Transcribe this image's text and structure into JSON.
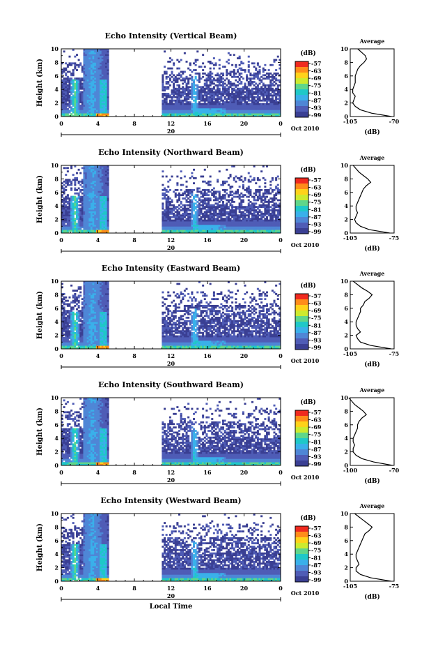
{
  "chart_data": [
    {
      "type": "heatmap",
      "title": "Echo Intensity (Vertical Beam)",
      "ylabel": "Height (km)",
      "ylim": [
        0,
        10
      ],
      "yticks": [
        "0",
        "2",
        "4",
        "6",
        "8",
        "10"
      ],
      "xlim": [
        0,
        24
      ],
      "xticks": [
        "0",
        "4",
        "8",
        "12",
        "16",
        "20",
        "0"
      ],
      "date_label": "20",
      "date_suffix": "Oct 2010",
      "data_gaps": [
        [
          5.3,
          10.8
        ]
      ],
      "colorbar": {
        "unit": "(dB)",
        "ticks": [
          "-57",
          "-63",
          "-69",
          "-75",
          "-81",
          "-87",
          "-93",
          "-99"
        ]
      },
      "profile": {
        "title": "Average",
        "xlabel": "(dB)",
        "xticks": [
          "-105",
          "-70"
        ],
        "yticks": [
          "0",
          "2",
          "4",
          "6",
          "8",
          "10"
        ],
        "height_km": [
          0,
          0.5,
          1,
          1.5,
          2,
          2.5,
          3,
          3.5,
          4,
          4.5,
          5,
          5.5,
          6,
          6.5,
          7,
          7.5,
          8,
          8.5,
          9,
          9.5,
          10
        ],
        "avg_db": [
          -72,
          -88,
          -97,
          -101,
          -103,
          -102,
          -101,
          -103,
          -103,
          -102,
          -101,
          -101,
          -101,
          -100,
          -99,
          -97,
          -94,
          -92,
          -93,
          -96,
          -99
        ]
      }
    },
    {
      "type": "heatmap",
      "title": "Echo Intensity (Northward Beam)",
      "ylabel": "Height (km)",
      "ylim": [
        0,
        10
      ],
      "yticks": [
        "0",
        "2",
        "4",
        "6",
        "8",
        "10"
      ],
      "xlim": [
        0,
        24
      ],
      "xticks": [
        "0",
        "4",
        "8",
        "12",
        "16",
        "20",
        "0"
      ],
      "date_label": "20",
      "date_suffix": "Oct 2010",
      "data_gaps": [
        [
          5.3,
          10.8
        ]
      ],
      "colorbar": {
        "unit": "(dB)",
        "ticks": [
          "-57",
          "-63",
          "-69",
          "-75",
          "-81",
          "-87",
          "-93",
          "-99"
        ]
      },
      "profile": {
        "title": "Average",
        "xlabel": "(dB)",
        "xticks": [
          "-105",
          "-75"
        ],
        "yticks": [
          "0",
          "2",
          "4",
          "6",
          "8",
          "10"
        ],
        "height_km": [
          0,
          0.5,
          1,
          1.5,
          2,
          2.5,
          3,
          3.5,
          4,
          4.5,
          5,
          5.5,
          6,
          6.5,
          7,
          7.5,
          8,
          8.5,
          9,
          9.5,
          10
        ],
        "avg_db": [
          -78,
          -92,
          -98,
          -101,
          -102,
          -101,
          -100,
          -101,
          -101,
          -100,
          -99,
          -98,
          -97,
          -96,
          -94,
          -91,
          -93,
          -96,
          -99,
          -101,
          -103
        ]
      }
    },
    {
      "type": "heatmap",
      "title": "Echo Intensity (Eastward Beam)",
      "ylabel": "Height (km)",
      "ylim": [
        0,
        10
      ],
      "yticks": [
        "0",
        "2",
        "4",
        "6",
        "8",
        "10"
      ],
      "xlim": [
        0,
        24
      ],
      "xticks": [
        "0",
        "4",
        "8",
        "12",
        "16",
        "20",
        "0"
      ],
      "date_label": "20",
      "date_suffix": "Oct 2010",
      "data_gaps": [
        [
          5.3,
          10.8
        ]
      ],
      "colorbar": {
        "unit": "(dB)",
        "ticks": [
          "-57",
          "-63",
          "-69",
          "-75",
          "-81",
          "-87",
          "-93",
          "-99"
        ]
      },
      "profile": {
        "title": "Average",
        "xlabel": "(dB)",
        "xticks": [
          "-105",
          "-75"
        ],
        "yticks": [
          "0",
          "2",
          "4",
          "6",
          "8",
          "10"
        ],
        "height_km": [
          0,
          0.5,
          1,
          1.5,
          2,
          2.5,
          3,
          3.5,
          4,
          4.5,
          5,
          5.5,
          6,
          6.5,
          7,
          7.5,
          8,
          8.5,
          9,
          9.5,
          10
        ],
        "avg_db": [
          -77,
          -91,
          -98,
          -100,
          -101,
          -98,
          -100,
          -101,
          -101,
          -100,
          -99,
          -98,
          -98,
          -96,
          -95,
          -92,
          -90,
          -93,
          -97,
          -100,
          -103
        ]
      }
    },
    {
      "type": "heatmap",
      "title": "Echo Intensity (Southward Beam)",
      "ylabel": "Height (km)",
      "ylim": [
        0,
        10
      ],
      "yticks": [
        "0",
        "2",
        "4",
        "6",
        "8",
        "10"
      ],
      "xlim": [
        0,
        24
      ],
      "xticks": [
        "0",
        "4",
        "8",
        "12",
        "16",
        "20",
        "0"
      ],
      "date_label": "20",
      "date_suffix": "Oct 2010",
      "data_gaps": [
        [
          5.3,
          10.8
        ]
      ],
      "colorbar": {
        "unit": "(dB)",
        "ticks": [
          "-57",
          "-63",
          "-69",
          "-75",
          "-81",
          "-87",
          "-93",
          "-99"
        ]
      },
      "profile": {
        "title": "Average",
        "xlabel": "(dB)",
        "xticks": [
          "-100",
          "-70"
        ],
        "yticks": [
          "0",
          "2",
          "4",
          "6",
          "8",
          "10"
        ],
        "height_km": [
          0,
          0.5,
          1,
          1.5,
          2,
          2.5,
          3,
          3.5,
          4,
          4.5,
          5,
          5.5,
          6,
          6.5,
          7,
          7.5,
          8,
          8.5,
          9,
          9.5,
          10
        ],
        "avg_db": [
          -71,
          -84,
          -92,
          -96,
          -98,
          -98,
          -97,
          -98,
          -98,
          -97,
          -96,
          -95,
          -95,
          -94,
          -92,
          -89,
          -91,
          -94,
          -97,
          -99,
          -101
        ]
      }
    },
    {
      "type": "heatmap",
      "title": "Echo Intensity (Westward Beam)",
      "ylabel": "Height (km)",
      "xlabel": "Local Time",
      "ylim": [
        0,
        10
      ],
      "yticks": [
        "0",
        "2",
        "4",
        "6",
        "8",
        "10"
      ],
      "xlim": [
        0,
        24
      ],
      "xticks": [
        "0",
        "4",
        "8",
        "12",
        "16",
        "20",
        "0"
      ],
      "date_label": "20",
      "date_suffix": "Oct 2010",
      "data_gaps": [
        [
          5.3,
          10.8
        ]
      ],
      "colorbar": {
        "unit": "(dB)",
        "ticks": [
          "-57",
          "-63",
          "-69",
          "-75",
          "-81",
          "-87",
          "-93",
          "-99"
        ]
      },
      "profile": {
        "title": "Average",
        "xlabel": "(dB)",
        "xticks": [
          "-105",
          "-75"
        ],
        "yticks": [
          "0",
          "2",
          "4",
          "6",
          "8",
          "10"
        ],
        "height_km": [
          0,
          0.5,
          1,
          1.5,
          2,
          2.5,
          3,
          3.5,
          4,
          4.5,
          5,
          5.5,
          6,
          6.5,
          7,
          7.5,
          8,
          8.5,
          9,
          9.5,
          10
        ],
        "avg_db": [
          -77,
          -91,
          -98,
          -101,
          -101,
          -99,
          -100,
          -101,
          -101,
          -100,
          -99,
          -98,
          -97,
          -96,
          -95,
          -92,
          -90,
          -93,
          -96,
          -99,
          -102
        ]
      }
    }
  ],
  "palette": [
    "#f02a1f",
    "#ff8c1a",
    "#ffd21a",
    "#cdea2e",
    "#5fd68a",
    "#1fc8c8",
    "#3ab0ea",
    "#4f86d6",
    "#4f5cb6",
    "#3a3f93"
  ]
}
